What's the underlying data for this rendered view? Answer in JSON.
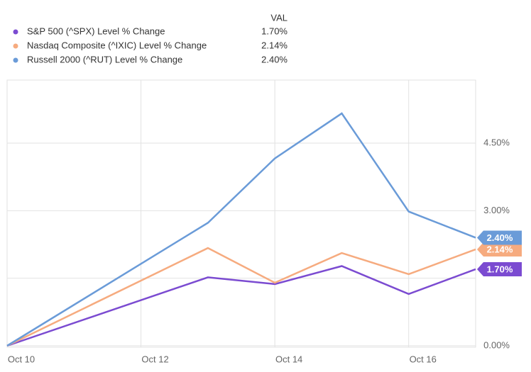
{
  "chart_data": {
    "type": "line",
    "legend_header": "VAL",
    "x": [
      10,
      13,
      14,
      15,
      16,
      17
    ],
    "xlim": [
      10,
      17
    ],
    "xticks": [
      {
        "value": 10,
        "label": "Oct 10"
      },
      {
        "value": 12,
        "label": "Oct 12"
      },
      {
        "value": 14,
        "label": "Oct 14"
      },
      {
        "value": 16,
        "label": "Oct 16"
      }
    ],
    "ylim": [
      0,
      5.9
    ],
    "yticks": [
      {
        "value": 0,
        "label": "0.00%"
      },
      {
        "value": 1.5,
        "label": null
      },
      {
        "value": 3,
        "label": "3.00%"
      },
      {
        "value": 4.5,
        "label": "4.50%"
      }
    ],
    "grid": true,
    "series": [
      {
        "name": "S&P 500 (^SPX) Level % Change",
        "color": "#7b4bd1",
        "values": [
          0,
          1.52,
          1.37,
          1.77,
          1.15,
          1.7
        ],
        "value_labels": [
          null,
          null,
          null,
          null,
          null,
          "1.70%"
        ]
      },
      {
        "name": "Nasdaq Composite (^IXIC) Level % Change",
        "color": "#f6ab7f",
        "values": [
          0,
          2.17,
          1.4,
          2.06,
          1.59,
          2.14
        ],
        "value_labels": [
          null,
          null,
          null,
          null,
          null,
          "2.14%"
        ]
      },
      {
        "name": "Russell 2000 (^RUT) Level % Change",
        "color": "#6a9bd8",
        "values": [
          0,
          2.73,
          4.16,
          5.16,
          2.98,
          2.4
        ],
        "value_labels": [
          null,
          null,
          null,
          null,
          null,
          "2.40%"
        ]
      }
    ]
  }
}
